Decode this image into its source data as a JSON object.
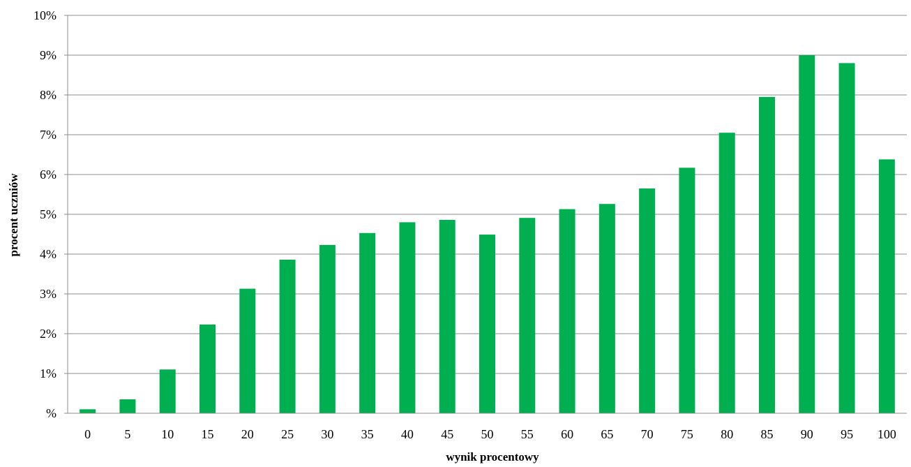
{
  "chart_data": {
    "type": "bar",
    "title": "",
    "xlabel": "wynik procentowy",
    "ylabel": "procent uczniów",
    "categories": [
      "0",
      "5",
      "10",
      "15",
      "20",
      "25",
      "30",
      "35",
      "40",
      "45",
      "50",
      "55",
      "60",
      "65",
      "70",
      "75",
      "80",
      "85",
      "90",
      "95",
      "100"
    ],
    "values": [
      0.1,
      0.35,
      1.1,
      2.23,
      3.13,
      3.86,
      4.23,
      4.53,
      4.8,
      4.86,
      4.49,
      4.91,
      5.13,
      5.26,
      5.65,
      6.17,
      7.05,
      7.95,
      9.0,
      8.8,
      6.38
    ],
    "ylim": [
      0,
      10
    ],
    "yticks": [
      0,
      1,
      2,
      3,
      4,
      5,
      6,
      7,
      8,
      9,
      10
    ],
    "ytick_labels": [
      "%",
      "1%",
      "2%",
      "3%",
      "4%",
      "5%",
      "6%",
      "7%",
      "8%",
      "9%",
      "10%"
    ],
    "grid": true,
    "legend": "none",
    "bar_color": "#00b050",
    "grid_color": "#8c8c8c"
  }
}
